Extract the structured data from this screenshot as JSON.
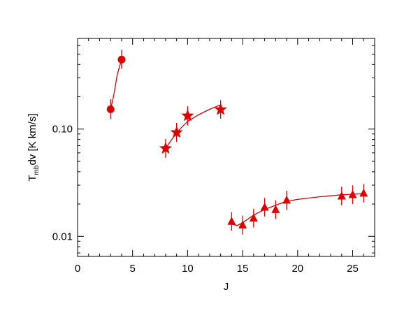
{
  "chart_data": {
    "type": "scatter",
    "title": "",
    "xlabel": "J",
    "ylabel": {
      "main": "T",
      "subscript": "mb",
      "rest": "dv [K km/s]"
    },
    "xlim": [
      0,
      27
    ],
    "ylim": [
      0.0065,
      0.7
    ],
    "yscale": "log",
    "grid": false,
    "legend": "none",
    "color": "#dd0000",
    "x_ticks": [
      0,
      5,
      10,
      15,
      20,
      25
    ],
    "x_tick_labels": [
      "0",
      "5",
      "10",
      "15",
      "20",
      "25"
    ],
    "y_ticks": [
      0.01,
      0.1
    ],
    "y_tick_labels": [
      "0.01",
      "0.10"
    ],
    "series": [
      {
        "marker": "circle",
        "points": [
          {
            "x": 3,
            "y": 0.153,
            "lo": 0.124,
            "hi": 0.19
          },
          {
            "x": 4,
            "y": 0.445,
            "lo": 0.365,
            "hi": 0.55
          }
        ],
        "fit": [
          [
            3,
            0.153
          ],
          [
            3.3,
            0.21
          ],
          [
            3.6,
            0.32
          ],
          [
            4,
            0.445
          ]
        ]
      },
      {
        "marker": "star",
        "points": [
          {
            "x": 8,
            "y": 0.066,
            "lo": 0.054,
            "hi": 0.081
          },
          {
            "x": 9,
            "y": 0.093,
            "lo": 0.076,
            "hi": 0.114
          },
          {
            "x": 10,
            "y": 0.133,
            "lo": 0.108,
            "hi": 0.163
          },
          {
            "x": 13,
            "y": 0.152,
            "lo": 0.125,
            "hi": 0.186
          }
        ],
        "fit": [
          [
            8,
            0.066
          ],
          [
            9,
            0.093
          ],
          [
            10,
            0.118
          ],
          [
            11,
            0.136
          ],
          [
            12,
            0.153
          ],
          [
            13,
            0.168
          ]
        ]
      },
      {
        "marker": "triangle",
        "points": [
          {
            "x": 14,
            "y": 0.0138,
            "lo": 0.0113,
            "hi": 0.0168
          },
          {
            "x": 15,
            "y": 0.0128,
            "lo": 0.0104,
            "hi": 0.0156
          },
          {
            "x": 16,
            "y": 0.0148,
            "lo": 0.0121,
            "hi": 0.018
          },
          {
            "x": 17,
            "y": 0.0187,
            "lo": 0.0153,
            "hi": 0.0228
          },
          {
            "x": 18,
            "y": 0.0178,
            "lo": 0.0145,
            "hi": 0.0217
          },
          {
            "x": 19,
            "y": 0.0218,
            "lo": 0.0176,
            "hi": 0.0266
          },
          {
            "x": 24,
            "y": 0.0238,
            "lo": 0.0195,
            "hi": 0.029
          },
          {
            "x": 25,
            "y": 0.0245,
            "lo": 0.02,
            "hi": 0.0299
          },
          {
            "x": 26,
            "y": 0.0253,
            "lo": 0.0207,
            "hi": 0.0308
          }
        ],
        "fit": [
          [
            14,
            0.013
          ],
          [
            14.5,
            0.0126
          ],
          [
            15,
            0.0134
          ],
          [
            16,
            0.0158
          ],
          [
            17,
            0.0178
          ],
          [
            18,
            0.0195
          ],
          [
            19,
            0.0212
          ],
          [
            20,
            0.0221
          ],
          [
            22,
            0.0234
          ],
          [
            24,
            0.0244
          ],
          [
            25,
            0.0247
          ],
          [
            26,
            0.025
          ]
        ]
      }
    ]
  }
}
